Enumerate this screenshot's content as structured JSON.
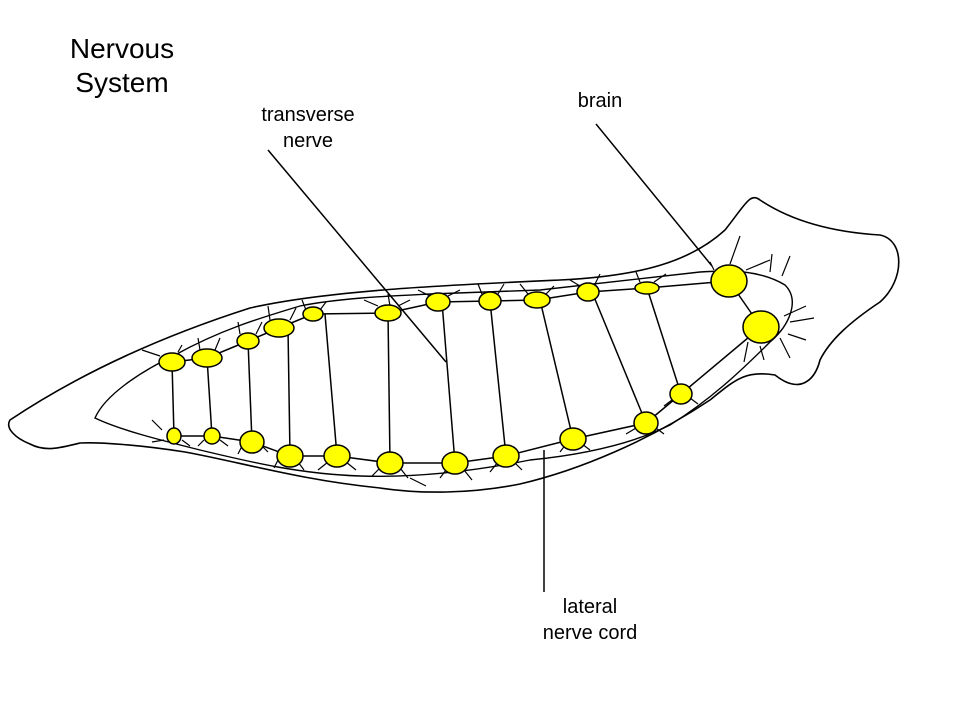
{
  "title": {
    "line1": "Nervous",
    "line2": "System"
  },
  "labels": {
    "transverse": {
      "line1": "transverse",
      "line2": "nerve"
    },
    "brain": "brain",
    "lateral": {
      "line1": "lateral",
      "line2": "nerve cord"
    }
  },
  "colors": {
    "ganglion": "#ffff00",
    "stroke": "#000000",
    "background": "#ffffff"
  }
}
